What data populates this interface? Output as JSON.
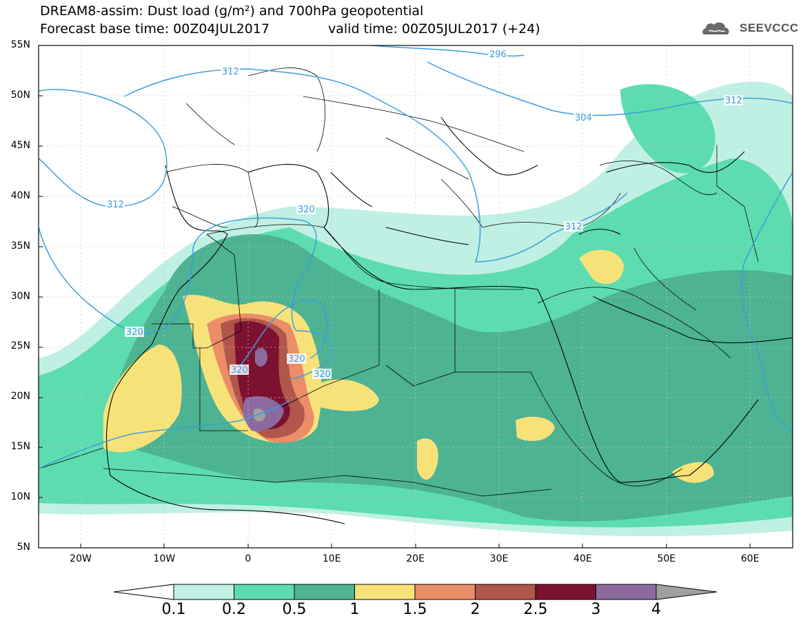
{
  "header": {
    "title_line1": "DREAM8-assim: Dust load (g/m²) and 700hPa geopotential",
    "title_line2": "Forecast base time: 00Z04JUL2017",
    "valid_time": "valid time: 00Z05JUL2017 (+24)",
    "logo_text": "SEEVCCC"
  },
  "axes": {
    "lat_labels": [
      "55N",
      "50N",
      "45N",
      "40N",
      "35N",
      "30N",
      "25N",
      "20N",
      "15N",
      "10N",
      "5N"
    ],
    "lon_labels": [
      "20W",
      "10W",
      "0",
      "10E",
      "20E",
      "30E",
      "40E",
      "50E",
      "60E"
    ]
  },
  "contour_labels": [
    "296",
    "304",
    "312",
    "312",
    "312",
    "312",
    "320",
    "320",
    "320",
    "320",
    "320"
  ],
  "colorbar": {
    "labels": [
      "0.1",
      "0.2",
      "0.5",
      "1",
      "1.5",
      "2",
      "2.5",
      "3",
      "4"
    ],
    "colors": [
      "#bff0e3",
      "#5ddcb0",
      "#4db392",
      "#f7e27a",
      "#ea8d68",
      "#b0564a",
      "#7d1131",
      "#8c6aa0",
      "#a0a0a0"
    ]
  },
  "palette": {
    "contour": "#3a9ee0",
    "border": "#000000"
  }
}
